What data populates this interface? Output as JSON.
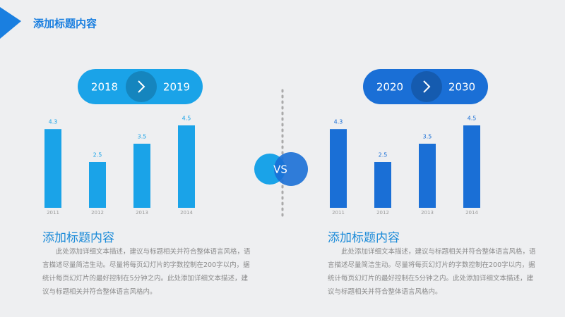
{
  "header": {
    "title": "添加标题内容"
  },
  "vs": "VS",
  "chart_data": [
    {
      "type": "bar",
      "range": [
        "2018",
        "2019"
      ],
      "categories": [
        "2011",
        "2012",
        "2013",
        "2014"
      ],
      "values": [
        4.3,
        2.5,
        3.5,
        4.5
      ],
      "color": "#1aa3e8",
      "title": "添加标题内容",
      "text": "此处添加详细文本描述，建议与标题相关并符合整体语言风格，语言描述尽量简洁生动。尽量将每页幻灯片的字数控制在200字以内，据统计每页幻灯片的最好控制在5分钟之内。此处添加详细文本描述，建议与标题相关并符合整体语言风格内。"
    },
    {
      "type": "bar",
      "range": [
        "2020",
        "2030"
      ],
      "categories": [
        "2011",
        "2012",
        "2013",
        "2014"
      ],
      "values": [
        4.3,
        2.5,
        3.5,
        4.5
      ],
      "color": "#1a6fd6",
      "title": "添加标题内容",
      "text": "此处添加详细文本描述，建议与标题相关并符合整体语言风格，语言描述尽量简洁生动。尽量将每页幻灯片的字数控制在200字以内，据统计每页幻灯片的最好控制在5分钟之内。此处添加详细文本描述，建议与标题相关并符合整体语言风格内。"
    }
  ]
}
